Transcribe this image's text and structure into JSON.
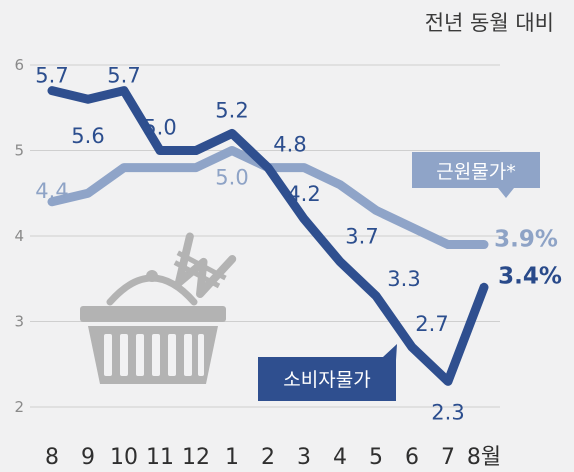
{
  "chart_data": {
    "type": "line",
    "unit_label": "전년 동월 대비",
    "categories": [
      "8",
      "9",
      "10",
      "11",
      "12",
      "1",
      "2",
      "3",
      "4",
      "5",
      "6",
      "7",
      "8월"
    ],
    "y_ticks": [
      "2",
      "3",
      "4",
      "5",
      "6"
    ],
    "ylim": [
      2,
      6
    ],
    "grid": "horizontal",
    "series": [
      {
        "name": "소비자물가",
        "color": "#2f4f8f",
        "values": [
          5.7,
          5.6,
          5.7,
          5.0,
          5.0,
          5.2,
          4.8,
          4.2,
          3.7,
          3.3,
          2.7,
          2.3,
          3.4
        ],
        "labels": [
          "5.7",
          "5.6",
          "5.7",
          "5.0",
          "",
          "5.2",
          "4.8",
          "4.2",
          "3.7",
          "3.3",
          "2.7",
          "2.3",
          "3.4%"
        ]
      },
      {
        "name": "근원물가*",
        "color": "#8fa4c8",
        "values": [
          4.4,
          4.5,
          4.8,
          4.8,
          4.8,
          5.0,
          4.8,
          4.8,
          4.6,
          4.3,
          4.1,
          3.9,
          3.9
        ],
        "labels": [
          "4.4",
          "",
          "",
          "",
          "",
          "5.0",
          "",
          "",
          "",
          "",
          "",
          "",
          "3.9%"
        ]
      }
    ],
    "illustration": "shopping-basket-with-won-sign-icon"
  }
}
